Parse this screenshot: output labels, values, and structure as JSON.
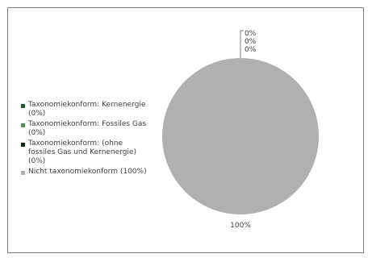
{
  "chart_data": {
    "type": "pie",
    "categories": [
      "Taxonomiekonform: Kernenergie (0%)",
      "Taxonomiekonform: Fossiles Gas (0%)",
      "Taxonomiekonform: (ohne fossiles Gas und Kernenergie) (0%)",
      "Nicht taxonomiekonform (100%)"
    ],
    "values": [
      0,
      0,
      0,
      100
    ],
    "data_labels": [
      "0%",
      "0%",
      "0%",
      "100%"
    ],
    "colors": [
      "#1f5b2e",
      "#4f8f5a",
      "#0a2a12",
      "#b0b0b0"
    ],
    "legend_placement": "left"
  },
  "legend": {
    "items": [
      {
        "label": "Taxonomiekonform: Kernenergie (0%)",
        "color": "#1f5b2e"
      },
      {
        "label": "Taxonomiekonform: Fossiles Gas (0%)",
        "color": "#4f8f5a"
      },
      {
        "label": "Taxonomiekonform: (ohne fossiles Gas und Kernenergie) (0%)",
        "color": "#0a2a12"
      },
      {
        "label": "Nicht taxonomiekonform (100%)",
        "color": "#b0b0b0"
      }
    ]
  }
}
